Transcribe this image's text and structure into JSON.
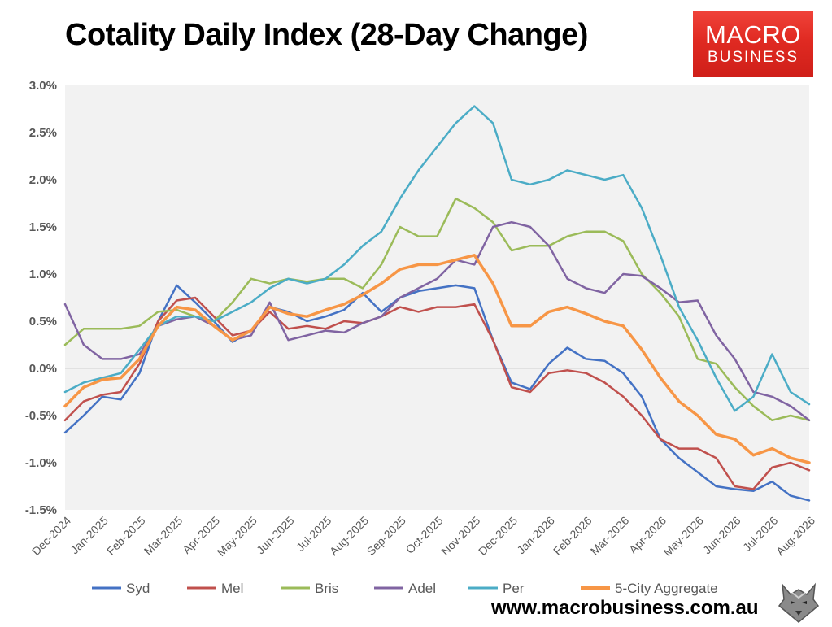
{
  "header": {
    "title": "Cotality Daily Index (28-Day Change)"
  },
  "logo": {
    "line1": "MACRO",
    "line2": "BUSINESS"
  },
  "footer": {
    "website": "www.macrobusiness.com.au"
  },
  "chart_data": {
    "type": "line",
    "title": "Cotality Daily Index (28-Day Change)",
    "xlabel": "",
    "ylabel": "",
    "ylim": [
      -1.5,
      3.0
    ],
    "y_ticks": [
      -1.5,
      -1.0,
      -0.5,
      0.0,
      0.5,
      1.0,
      1.5,
      2.0,
      2.5,
      3.0
    ],
    "y_tick_labels": [
      "-1.5%",
      "-1.0%",
      "-0.5%",
      "0.0%",
      "0.5%",
      "1.0%",
      "1.5%",
      "2.0%",
      "2.5%",
      "3.0%"
    ],
    "x_tick_labels": [
      "Dec-2024",
      "Jan-2025",
      "Feb-2025",
      "Mar-2025",
      "Apr-2025",
      "May-2025",
      "Jun-2025",
      "Jul-2025",
      "Aug-2025",
      "Sep-2025",
      "Oct-2025",
      "Nov-2025",
      "Dec-2025",
      "Jan-2026",
      "Feb-2026",
      "Mar-2026",
      "Apr-2026",
      "May-2026",
      "Jun-2026",
      "Jul-2026",
      "Aug-2026"
    ],
    "x_unit": "month index from Dec-2024",
    "grid": false,
    "plot_background": "#f2f2f2",
    "legend_position": "bottom",
    "series": [
      {
        "name": "Syd",
        "color": "#4472c4",
        "points": [
          [
            0,
            -0.68
          ],
          [
            0.5,
            -0.5
          ],
          [
            1,
            -0.3
          ],
          [
            1.5,
            -0.33
          ],
          [
            2,
            -0.05
          ],
          [
            2.5,
            0.5
          ],
          [
            3,
            0.88
          ],
          [
            3.5,
            0.7
          ],
          [
            4,
            0.5
          ],
          [
            4.5,
            0.28
          ],
          [
            5,
            0.4
          ],
          [
            5.5,
            0.65
          ],
          [
            6,
            0.6
          ],
          [
            6.5,
            0.5
          ],
          [
            7,
            0.55
          ],
          [
            7.5,
            0.62
          ],
          [
            8,
            0.8
          ],
          [
            8.5,
            0.6
          ],
          [
            9,
            0.75
          ],
          [
            9.5,
            0.82
          ],
          [
            10,
            0.85
          ],
          [
            10.5,
            0.88
          ],
          [
            11,
            0.85
          ],
          [
            11.5,
            0.3
          ],
          [
            12,
            -0.15
          ],
          [
            12.5,
            -0.22
          ],
          [
            13,
            0.05
          ],
          [
            13.5,
            0.22
          ],
          [
            14,
            0.1
          ],
          [
            14.5,
            0.08
          ],
          [
            15,
            -0.05
          ],
          [
            15.5,
            -0.3
          ],
          [
            16,
            -0.75
          ],
          [
            16.5,
            -0.95
          ],
          [
            17,
            -1.1
          ],
          [
            17.5,
            -1.25
          ],
          [
            18,
            -1.28
          ],
          [
            18.5,
            -1.3
          ],
          [
            19,
            -1.2
          ],
          [
            19.5,
            -1.35
          ],
          [
            20,
            -1.4
          ]
        ]
      },
      {
        "name": "Mel",
        "color": "#c0504d",
        "points": [
          [
            0,
            -0.55
          ],
          [
            0.5,
            -0.35
          ],
          [
            1,
            -0.28
          ],
          [
            1.5,
            -0.25
          ],
          [
            2,
            0.05
          ],
          [
            2.5,
            0.5
          ],
          [
            3,
            0.72
          ],
          [
            3.5,
            0.75
          ],
          [
            4,
            0.55
          ],
          [
            4.5,
            0.35
          ],
          [
            5,
            0.4
          ],
          [
            5.5,
            0.6
          ],
          [
            6,
            0.42
          ],
          [
            6.5,
            0.45
          ],
          [
            7,
            0.42
          ],
          [
            7.5,
            0.5
          ],
          [
            8,
            0.48
          ],
          [
            8.5,
            0.55
          ],
          [
            9,
            0.65
          ],
          [
            9.5,
            0.6
          ],
          [
            10,
            0.65
          ],
          [
            10.5,
            0.65
          ],
          [
            11,
            0.68
          ],
          [
            11.5,
            0.3
          ],
          [
            12,
            -0.2
          ],
          [
            12.5,
            -0.25
          ],
          [
            13,
            -0.05
          ],
          [
            13.5,
            -0.02
          ],
          [
            14,
            -0.05
          ],
          [
            14.5,
            -0.15
          ],
          [
            15,
            -0.3
          ],
          [
            15.5,
            -0.5
          ],
          [
            16,
            -0.75
          ],
          [
            16.5,
            -0.85
          ],
          [
            17,
            -0.85
          ],
          [
            17.5,
            -0.95
          ],
          [
            18,
            -1.25
          ],
          [
            18.5,
            -1.28
          ],
          [
            19,
            -1.05
          ],
          [
            19.5,
            -1.0
          ],
          [
            20,
            -1.08
          ]
        ]
      },
      {
        "name": "Bris",
        "color": "#9bbb59",
        "points": [
          [
            0,
            0.25
          ],
          [
            0.5,
            0.42
          ],
          [
            1,
            0.42
          ],
          [
            1.5,
            0.42
          ],
          [
            2,
            0.45
          ],
          [
            2.5,
            0.6
          ],
          [
            3,
            0.62
          ],
          [
            3.5,
            0.55
          ],
          [
            4,
            0.5
          ],
          [
            4.5,
            0.7
          ],
          [
            5,
            0.95
          ],
          [
            5.5,
            0.9
          ],
          [
            6,
            0.95
          ],
          [
            6.5,
            0.92
          ],
          [
            7,
            0.95
          ],
          [
            7.5,
            0.95
          ],
          [
            8,
            0.85
          ],
          [
            8.5,
            1.1
          ],
          [
            9,
            1.5
          ],
          [
            9.5,
            1.4
          ],
          [
            10,
            1.4
          ],
          [
            10.5,
            1.8
          ],
          [
            11,
            1.7
          ],
          [
            11.5,
            1.55
          ],
          [
            12,
            1.25
          ],
          [
            12.5,
            1.3
          ],
          [
            13,
            1.3
          ],
          [
            13.5,
            1.4
          ],
          [
            14,
            1.45
          ],
          [
            14.5,
            1.45
          ],
          [
            15,
            1.35
          ],
          [
            15.5,
            1.0
          ],
          [
            16,
            0.8
          ],
          [
            16.5,
            0.55
          ],
          [
            17,
            0.1
          ],
          [
            17.5,
            0.05
          ],
          [
            18,
            -0.2
          ],
          [
            18.5,
            -0.4
          ],
          [
            19,
            -0.55
          ],
          [
            19.5,
            -0.5
          ],
          [
            20,
            -0.55
          ]
        ]
      },
      {
        "name": "Adel",
        "color": "#8064a2",
        "points": [
          [
            0,
            0.68
          ],
          [
            0.5,
            0.25
          ],
          [
            1,
            0.1
          ],
          [
            1.5,
            0.1
          ],
          [
            2,
            0.15
          ],
          [
            2.5,
            0.45
          ],
          [
            3,
            0.52
          ],
          [
            3.5,
            0.55
          ],
          [
            4,
            0.45
          ],
          [
            4.5,
            0.3
          ],
          [
            5,
            0.35
          ],
          [
            5.5,
            0.7
          ],
          [
            6,
            0.3
          ],
          [
            6.5,
            0.35
          ],
          [
            7,
            0.4
          ],
          [
            7.5,
            0.38
          ],
          [
            8,
            0.48
          ],
          [
            8.5,
            0.55
          ],
          [
            9,
            0.75
          ],
          [
            9.5,
            0.85
          ],
          [
            10,
            0.95
          ],
          [
            10.5,
            1.15
          ],
          [
            11,
            1.1
          ],
          [
            11.5,
            1.5
          ],
          [
            12,
            1.55
          ],
          [
            12.5,
            1.5
          ],
          [
            13,
            1.3
          ],
          [
            13.5,
            0.95
          ],
          [
            14,
            0.85
          ],
          [
            14.5,
            0.8
          ],
          [
            15,
            1.0
          ],
          [
            15.5,
            0.98
          ],
          [
            16,
            0.85
          ],
          [
            16.5,
            0.7
          ],
          [
            17,
            0.72
          ],
          [
            17.5,
            0.35
          ],
          [
            18,
            0.1
          ],
          [
            18.5,
            -0.25
          ],
          [
            19,
            -0.3
          ],
          [
            19.5,
            -0.4
          ],
          [
            20,
            -0.55
          ]
        ]
      },
      {
        "name": "Per",
        "color": "#4bacc6",
        "points": [
          [
            0,
            -0.25
          ],
          [
            0.5,
            -0.15
          ],
          [
            1,
            -0.1
          ],
          [
            1.5,
            -0.05
          ],
          [
            2,
            0.2
          ],
          [
            2.5,
            0.45
          ],
          [
            3,
            0.55
          ],
          [
            3.5,
            0.55
          ],
          [
            4,
            0.5
          ],
          [
            4.5,
            0.6
          ],
          [
            5,
            0.7
          ],
          [
            5.5,
            0.85
          ],
          [
            6,
            0.95
          ],
          [
            6.5,
            0.9
          ],
          [
            7,
            0.95
          ],
          [
            7.5,
            1.1
          ],
          [
            8,
            1.3
          ],
          [
            8.5,
            1.45
          ],
          [
            9,
            1.8
          ],
          [
            9.5,
            2.1
          ],
          [
            10,
            2.35
          ],
          [
            10.5,
            2.6
          ],
          [
            11,
            2.78
          ],
          [
            11.5,
            2.6
          ],
          [
            12,
            2.0
          ],
          [
            12.5,
            1.95
          ],
          [
            13,
            2.0
          ],
          [
            13.5,
            2.1
          ],
          [
            14,
            2.05
          ],
          [
            14.5,
            2.0
          ],
          [
            15,
            2.05
          ],
          [
            15.5,
            1.7
          ],
          [
            16,
            1.2
          ],
          [
            16.5,
            0.65
          ],
          [
            17,
            0.3
          ],
          [
            17.5,
            -0.1
          ],
          [
            18,
            -0.45
          ],
          [
            18.5,
            -0.3
          ],
          [
            19,
            0.15
          ],
          [
            19.5,
            -0.25
          ],
          [
            20,
            -0.38
          ]
        ]
      },
      {
        "name": "5-City Aggregate",
        "color": "#f79646",
        "points": [
          [
            0,
            -0.4
          ],
          [
            0.5,
            -0.2
          ],
          [
            1,
            -0.12
          ],
          [
            1.5,
            -0.1
          ],
          [
            2,
            0.1
          ],
          [
            2.5,
            0.45
          ],
          [
            3,
            0.65
          ],
          [
            3.5,
            0.62
          ],
          [
            4,
            0.45
          ],
          [
            4.5,
            0.3
          ],
          [
            5,
            0.4
          ],
          [
            5.5,
            0.65
          ],
          [
            6,
            0.58
          ],
          [
            6.5,
            0.55
          ],
          [
            7,
            0.62
          ],
          [
            7.5,
            0.68
          ],
          [
            8,
            0.78
          ],
          [
            8.5,
            0.9
          ],
          [
            9,
            1.05
          ],
          [
            9.5,
            1.1
          ],
          [
            10,
            1.1
          ],
          [
            10.5,
            1.15
          ],
          [
            11,
            1.2
          ],
          [
            11.5,
            0.9
          ],
          [
            12,
            0.45
          ],
          [
            12.5,
            0.45
          ],
          [
            13,
            0.6
          ],
          [
            13.5,
            0.65
          ],
          [
            14,
            0.58
          ],
          [
            14.5,
            0.5
          ],
          [
            15,
            0.45
          ],
          [
            15.5,
            0.2
          ],
          [
            16,
            -0.1
          ],
          [
            16.5,
            -0.35
          ],
          [
            17,
            -0.5
          ],
          [
            17.5,
            -0.7
          ],
          [
            18,
            -0.75
          ],
          [
            18.5,
            -0.92
          ],
          [
            19,
            -0.85
          ],
          [
            19.5,
            -0.95
          ],
          [
            20,
            -1.0
          ]
        ]
      }
    ]
  }
}
